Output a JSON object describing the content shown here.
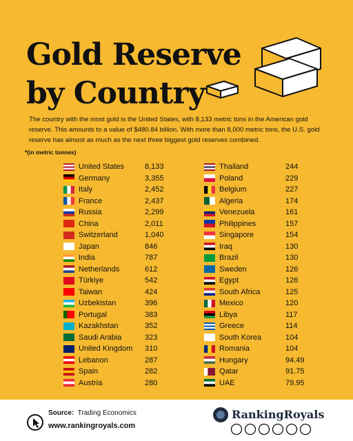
{
  "header": {
    "title_line1": "Gold Reserve",
    "title_line2": "by Country",
    "description": "The country with the most gold is the United States, with 8,133 metric tons in the American gold reserve. This amounts to a value of $480.84 billion. With more than 8,000 metric tons, the U.S. gold reserve has almost as much as the next three biggest gold reserves combined.",
    "unit_note": "*(in metric tonnes)"
  },
  "table": {
    "left": [
      [
        "United States",
        "8,133"
      ],
      [
        "Germany",
        "3,355"
      ],
      [
        "Italy",
        "2,452"
      ],
      [
        "France",
        "2,437"
      ],
      [
        "Russia",
        "2,299"
      ],
      [
        "China",
        "2,011"
      ],
      [
        "Switzerland",
        "1,040"
      ],
      [
        "Japan",
        "846"
      ],
      [
        "India",
        "787"
      ],
      [
        "Netherlands",
        "612"
      ],
      [
        "Türkiye",
        "542"
      ],
      [
        "Taiwan",
        "424"
      ],
      [
        "Uzbekistan",
        "396"
      ],
      [
        "Portugal",
        "383"
      ],
      [
        "Kazakhstan",
        "352"
      ],
      [
        "Saudi Arabia",
        "323"
      ],
      [
        "United Kingdom",
        "310"
      ],
      [
        "Lebanon",
        "287"
      ],
      [
        "Spain",
        "282"
      ],
      [
        "Austria",
        "280"
      ]
    ],
    "right": [
      [
        "Thailand",
        "244"
      ],
      [
        "Poland",
        "229"
      ],
      [
        "Belgium",
        "227"
      ],
      [
        "Algeria",
        "174"
      ],
      [
        "Venezuela",
        "161"
      ],
      [
        "Philippines",
        "157"
      ],
      [
        "Singapore",
        "154"
      ],
      [
        "Iraq",
        "130"
      ],
      [
        "Brazil",
        "130"
      ],
      [
        "Sweden",
        "126"
      ],
      [
        "Egypt",
        "126"
      ],
      [
        "South Africa",
        "125"
      ],
      [
        "Mexico",
        "120"
      ],
      [
        "Libya",
        "117"
      ],
      [
        "Greece",
        "114"
      ],
      [
        "South Korea",
        "104"
      ],
      [
        "Romania",
        "104"
      ],
      [
        "Hungary",
        "94.49"
      ],
      [
        "Qatar",
        "91.75"
      ],
      [
        "UAE",
        "79.95"
      ]
    ]
  },
  "footer": {
    "source_label": "Source:",
    "source": "Trading Economics",
    "website": "www.rankingroyals.com",
    "brand": "RankingRoyals"
  }
}
